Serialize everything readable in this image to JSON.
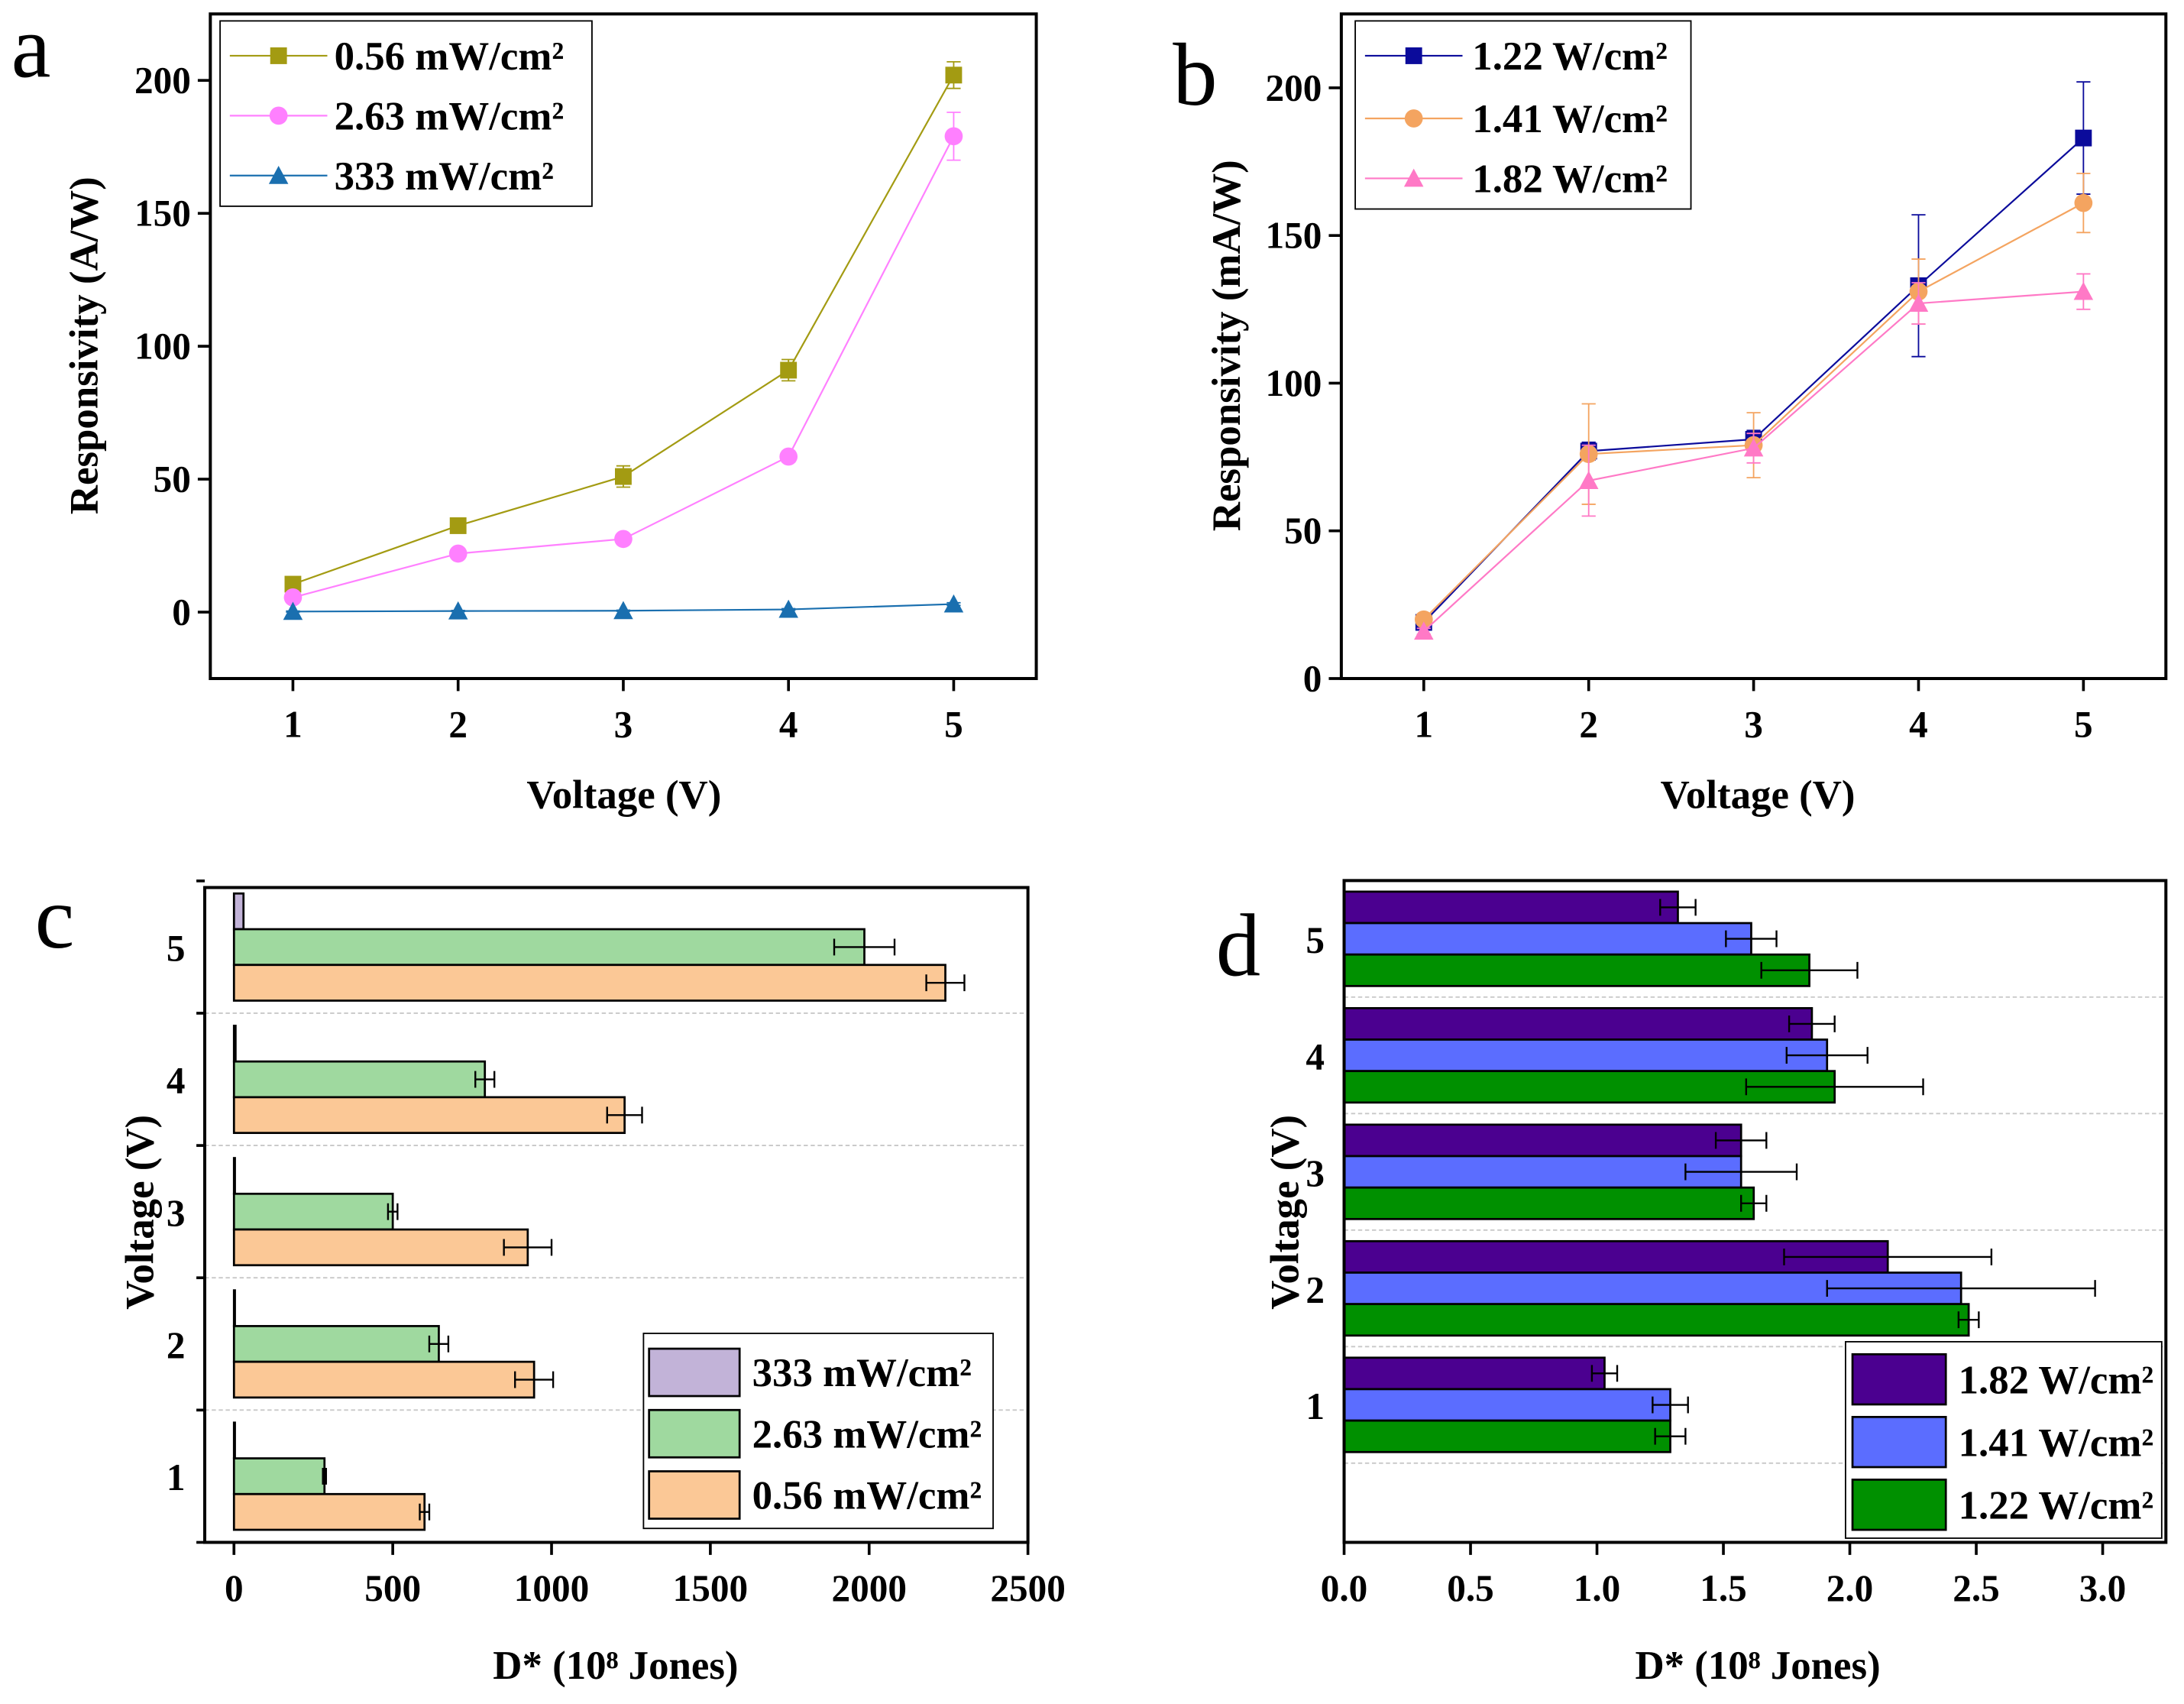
{
  "chart_data": [
    {
      "panel": "a",
      "type": "line",
      "xlabel": "Voltage (V)",
      "ylabel": "Responsivity (A/W)",
      "xlim": [
        0.5,
        5.5
      ],
      "ylim": [
        -25,
        225
      ],
      "xticks": [
        "1",
        "2",
        "3",
        "4",
        "5"
      ],
      "yticks": [
        "0",
        "50",
        "100",
        "150",
        "200"
      ],
      "x": [
        1,
        2,
        3,
        4,
        5
      ],
      "legend_position": "top-left",
      "grid": false,
      "series": [
        {
          "name": "0.56 mW/cm²",
          "color": "#a39b12",
          "marker": "square",
          "values": [
            10.5,
            32.5,
            51,
            91,
            202
          ],
          "errors": [
            1,
            1,
            4,
            4,
            5
          ]
        },
        {
          "name": "2.63 mW/cm²",
          "color": "#ff80ff",
          "marker": "circle",
          "values": [
            5.5,
            22,
            27.5,
            58.5,
            179
          ],
          "errors": [
            1,
            1,
            1,
            2,
            9
          ]
        },
        {
          "name": "333 mW/cm²",
          "color": "#1a6faf",
          "marker": "triangle",
          "values": [
            0.2,
            0.4,
            0.5,
            1,
            3
          ],
          "errors": [
            0.2,
            0.2,
            0.2,
            0.3,
            0.5
          ]
        }
      ]
    },
    {
      "panel": "b",
      "type": "line",
      "xlabel": "Voltage (V)",
      "ylabel": "Responsivity (mA/W)",
      "xlim": [
        0.5,
        5.5
      ],
      "ylim": [
        0,
        225
      ],
      "xticks": [
        "1",
        "2",
        "3",
        "4",
        "5"
      ],
      "yticks": [
        "0",
        "50",
        "100",
        "150",
        "200"
      ],
      "x": [
        1,
        2,
        3,
        4,
        5
      ],
      "legend_position": "top-left",
      "grid": false,
      "series": [
        {
          "name": "1.22 W/cm²",
          "color": "#0b0b9b",
          "marker": "square",
          "values": [
            19,
            77,
            81,
            133,
            183
          ],
          "errors": [
            1,
            3,
            3,
            24,
            19
          ]
        },
        {
          "name": "1.41 W/cm²",
          "color": "#f4a460",
          "marker": "circle",
          "values": [
            20,
            76,
            79,
            131,
            161
          ],
          "errors": [
            1,
            17,
            11,
            11,
            10
          ]
        },
        {
          "name": "1.82 W/cm²",
          "color": "#ff79c6",
          "marker": "triangle",
          "values": [
            16,
            67,
            78,
            127,
            131
          ],
          "errors": [
            1,
            12,
            5,
            7,
            6
          ]
        }
      ]
    },
    {
      "panel": "c",
      "type": "bar",
      "orientation": "horizontal",
      "xlabel": "D* (10⁸ Jones)",
      "ylabel": "Voltage (V)",
      "xlim": [
        -92,
        2500
      ],
      "xticks": [
        "0",
        "500",
        "1000",
        "1500",
        "2000",
        "2500"
      ],
      "categories": [
        "1",
        "2",
        "3",
        "4",
        "5"
      ],
      "legend_position": "bottom-right",
      "grid": true,
      "series": [
        {
          "name": "333 mW/cm²",
          "color": "#c2b3d8",
          "values": [
            3,
            3,
            3,
            5,
            30
          ],
          "errors": [
            0,
            0,
            0,
            0,
            0
          ]
        },
        {
          "name": "2.63 mW/cm²",
          "color": "#9fd99f",
          "values": [
            285,
            645,
            500,
            790,
            1985
          ],
          "errors": [
            5,
            30,
            15,
            30,
            95
          ]
        },
        {
          "name": "0.56 mW/cm²",
          "color": "#fbc896",
          "values": [
            600,
            945,
            925,
            1230,
            2240
          ],
          "errors": [
            15,
            60,
            75,
            55,
            60
          ]
        }
      ]
    },
    {
      "panel": "d",
      "type": "bar",
      "orientation": "horizontal",
      "xlabel": "D* (10⁸ Jones)",
      "ylabel": "Voltage (V)",
      "xlim": [
        0,
        3.25
      ],
      "xticks": [
        "0.0",
        "0.5",
        "1.0",
        "1.5",
        "2.0",
        "2.5",
        "3.0"
      ],
      "categories": [
        "1",
        "2",
        "3",
        "4",
        "5"
      ],
      "legend_position": "bottom-right",
      "grid": true,
      "series": [
        {
          "name": "1.82 W/cm²",
          "color": "#4b0090",
          "values": [
            1.03,
            2.15,
            1.57,
            1.85,
            1.32
          ],
          "errors": [
            0.05,
            0.41,
            0.1,
            0.09,
            0.07
          ]
        },
        {
          "name": "1.41 W/cm²",
          "color": "#5b6dff",
          "values": [
            1.29,
            2.44,
            1.57,
            1.91,
            1.61
          ],
          "errors": [
            0.07,
            0.53,
            0.22,
            0.16,
            0.1
          ]
        },
        {
          "name": "1.22 W/cm²",
          "color": "#009000",
          "values": [
            1.29,
            2.47,
            1.62,
            1.94,
            1.84
          ],
          "errors": [
            0.06,
            0.04,
            0.05,
            0.35,
            0.19
          ]
        }
      ]
    }
  ]
}
